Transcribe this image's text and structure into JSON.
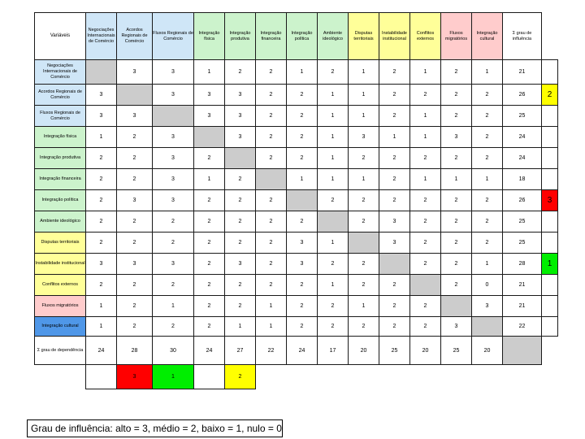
{
  "matrix": {
    "corner_label": "Variáveis",
    "col_headers": [
      "Negociações Internacionais de Comércio",
      "Acordos Regionais de Comércio",
      "Fluxos Regionais de Comércio",
      "Integração física",
      "Integração produtiva",
      "Integração financeira",
      "Integração política",
      "Ambiente ideológico",
      "Disputas territoriais",
      "Instabilidade institucional",
      "Conflitos externos",
      "Fluxos migratórios",
      "Integração cultural",
      "Σ grau de influência"
    ],
    "rows": [
      {
        "label": "Negociações Internacionais de Comércio",
        "cells": [
          "",
          "3",
          "3",
          "1",
          "2",
          "2",
          "1",
          "2",
          "1",
          "2",
          "1",
          "2",
          "1",
          "21"
        ],
        "marker": ""
      },
      {
        "label": "Acordos Regionais de Comércio",
        "cells": [
          "3",
          "",
          "3",
          "3",
          "3",
          "2",
          "2",
          "1",
          "1",
          "2",
          "2",
          "2",
          "2",
          "26"
        ],
        "marker": "2"
      },
      {
        "label": "Fluxos Regionais de Comércio",
        "cells": [
          "3",
          "3",
          "",
          "3",
          "3",
          "2",
          "2",
          "1",
          "1",
          "2",
          "1",
          "2",
          "2",
          "25"
        ],
        "marker": ""
      },
      {
        "label": "Integração física",
        "cells": [
          "1",
          "2",
          "3",
          "",
          "3",
          "2",
          "2",
          "1",
          "3",
          "1",
          "1",
          "3",
          "2",
          "24"
        ],
        "marker": ""
      },
      {
        "label": "Integração produtiva",
        "cells": [
          "2",
          "2",
          "3",
          "2",
          "",
          "2",
          "2",
          "1",
          "2",
          "2",
          "2",
          "2",
          "2",
          "24"
        ],
        "marker": ""
      },
      {
        "label": "Integração financeira",
        "cells": [
          "2",
          "2",
          "3",
          "1",
          "2",
          "",
          "1",
          "1",
          "1",
          "2",
          "1",
          "1",
          "1",
          "18"
        ],
        "marker": ""
      },
      {
        "label": "Integração política",
        "cells": [
          "2",
          "3",
          "3",
          "2",
          "2",
          "2",
          "",
          "2",
          "2",
          "2",
          "2",
          "2",
          "2",
          "26"
        ],
        "marker": "3"
      },
      {
        "label": "Ambiente ideológico",
        "cells": [
          "2",
          "2",
          "2",
          "2",
          "2",
          "2",
          "2",
          "",
          "2",
          "3",
          "2",
          "2",
          "2",
          "25"
        ],
        "marker": ""
      },
      {
        "label": "Disputas territoriais",
        "cells": [
          "2",
          "2",
          "2",
          "2",
          "2",
          "2",
          "3",
          "1",
          "",
          "3",
          "2",
          "2",
          "2",
          "25"
        ],
        "marker": ""
      },
      {
        "label": "Instabilidade institucional",
        "cells": [
          "3",
          "3",
          "3",
          "2",
          "3",
          "2",
          "3",
          "2",
          "2",
          "",
          "2",
          "2",
          "1",
          "28"
        ],
        "marker": "1"
      },
      {
        "label": "Conflitos externos",
        "cells": [
          "2",
          "2",
          "2",
          "2",
          "2",
          "2",
          "2",
          "1",
          "2",
          "2",
          "",
          "2",
          "0",
          "21"
        ],
        "marker": ""
      },
      {
        "label": "Fluxos migratórios",
        "cells": [
          "1",
          "2",
          "1",
          "2",
          "2",
          "1",
          "2",
          "2",
          "1",
          "2",
          "2",
          "",
          "3",
          "21"
        ],
        "marker": ""
      },
      {
        "label": "Integração cultural",
        "cells": [
          "1",
          "2",
          "2",
          "2",
          "1",
          "1",
          "2",
          "2",
          "2",
          "2",
          "2",
          "3",
          "",
          "22"
        ],
        "marker": ""
      }
    ],
    "dependency_row": {
      "label": "Σ grau de dependência",
      "cells": [
        "24",
        "28",
        "30",
        "24",
        "27",
        "22",
        "24",
        "17",
        "20",
        "25",
        "20",
        "25",
        "20"
      ]
    },
    "rank_row": [
      "",
      "3",
      "1",
      "",
      "2"
    ]
  },
  "colors": {
    "header_blue": "#cfe6f7",
    "header_green": "#ccf3cc",
    "header_yellow": "#ffff99",
    "header_pink": "#ffcccc",
    "rank_red": "#ff0000",
    "rank_green": "#00ee00",
    "rank_yellow": "#ffff00",
    "diagonal_gray": "#cccccc"
  },
  "legend": {
    "text": "Grau de influência: alto = 3, médio = 2, baixo = 1, nulo = 0"
  }
}
